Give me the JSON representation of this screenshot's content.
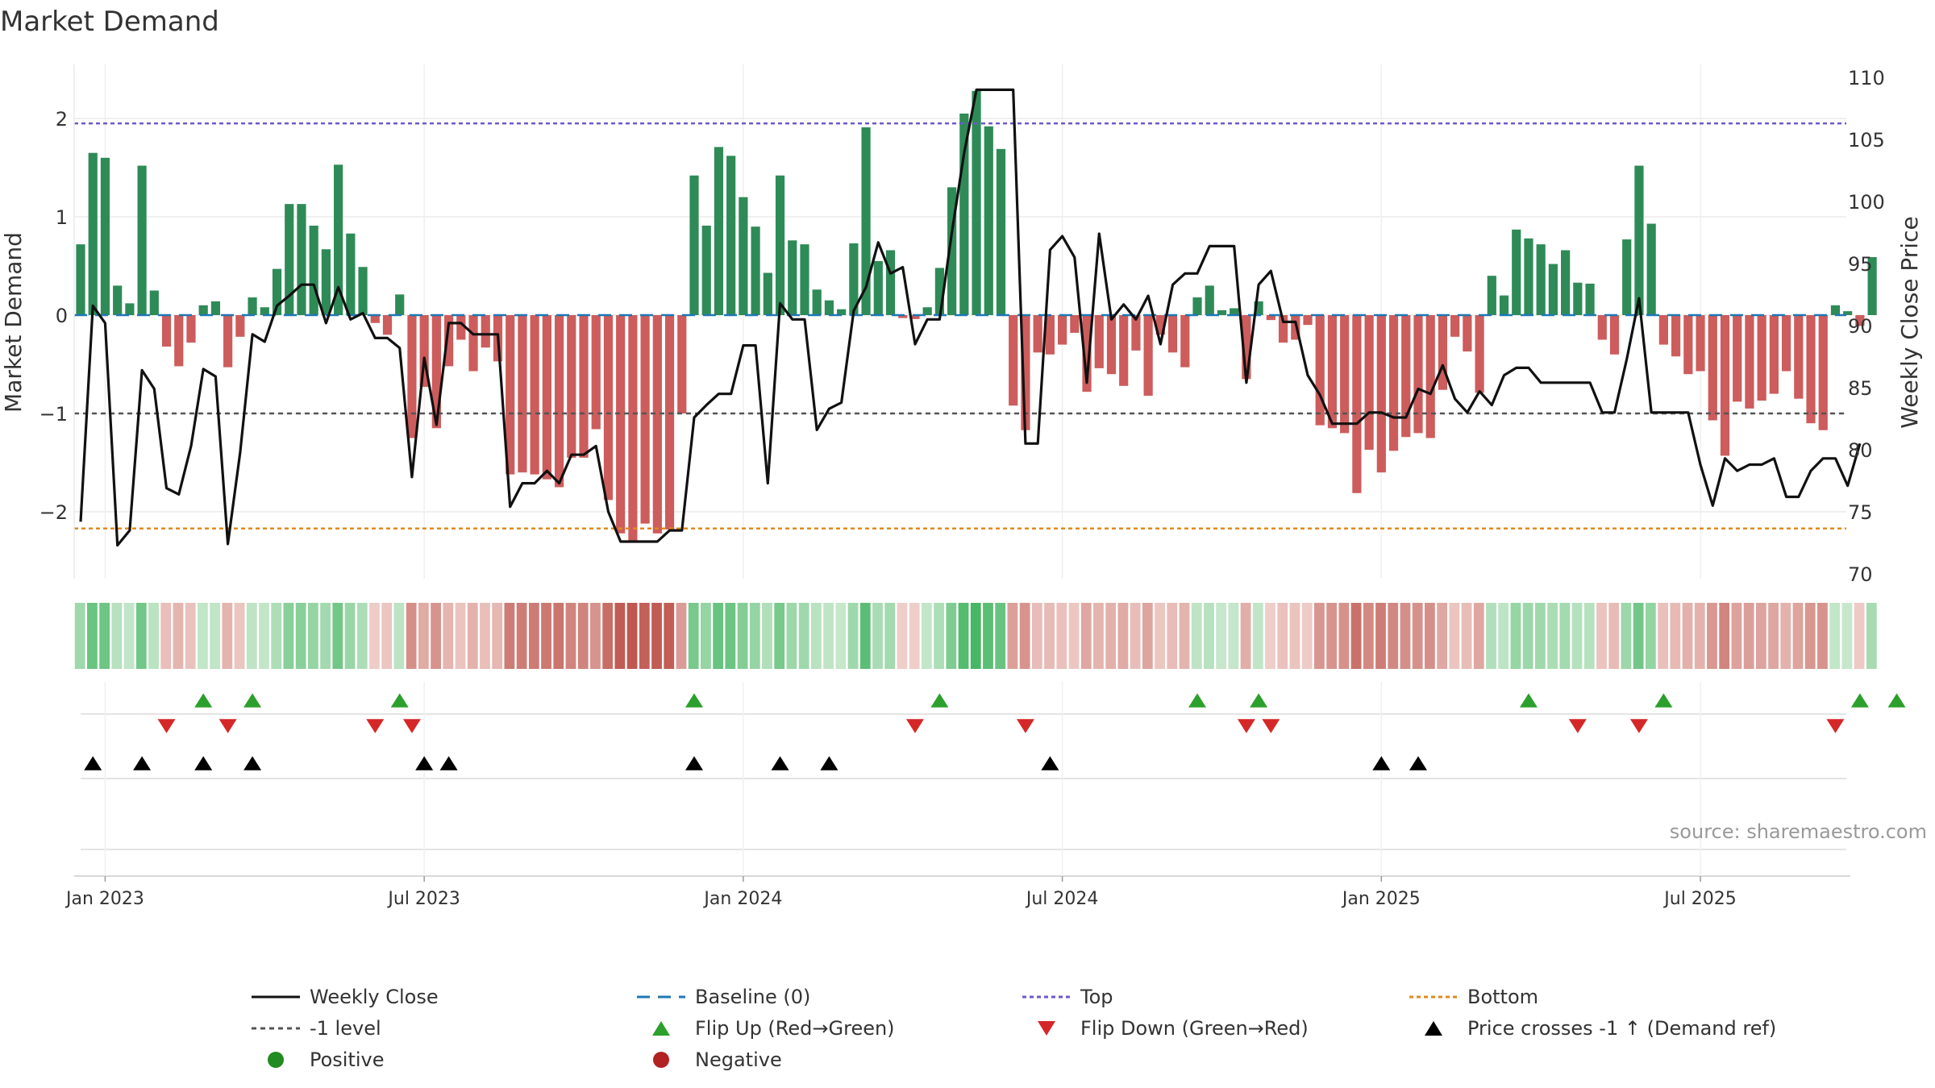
{
  "chart_data": {
    "type": "bar",
    "title": "Market Demand",
    "ylabel": "Market Demand",
    "y2label": "Weekly Close Price",
    "ylim": [
      -2.65,
      2.5
    ],
    "y2lim": [
      69.2,
      110.7
    ],
    "y_ticks": [
      "2",
      "1",
      "0",
      "−1",
      "−2"
    ],
    "y_tick_values": [
      2,
      1,
      0,
      -1,
      -2
    ],
    "y2_ticks": [
      "110",
      "105",
      "100",
      "95",
      "90",
      "85",
      "80",
      "75",
      "70"
    ],
    "y2_tick_values": [
      110,
      105,
      100,
      95,
      90,
      85,
      80,
      75,
      70
    ],
    "x_ticks": [
      "Jan 2023",
      "Jul 2023",
      "Jan 2024",
      "Jul 2024",
      "Jan 2025",
      "Jul 2025"
    ],
    "x_tick_weeks": [
      2,
      28,
      54,
      80,
      106,
      132
    ],
    "reference_lines": {
      "top": 1.95,
      "bottom": -2.17,
      "minus_one": -1,
      "baseline": 0
    },
    "demand": [
      0.72,
      1.65,
      1.6,
      0.3,
      0.12,
      1.52,
      0.25,
      -0.32,
      -0.52,
      -0.28,
      0.1,
      0.14,
      -0.53,
      -0.22,
      0.18,
      0.08,
      0.47,
      1.13,
      1.13,
      0.91,
      0.67,
      1.53,
      0.83,
      0.49,
      -0.08,
      -0.2,
      0.21,
      -1.25,
      -0.73,
      -1.15,
      -0.52,
      -0.25,
      -0.57,
      -0.33,
      -0.47,
      -1.62,
      -1.6,
      -1.62,
      -1.67,
      -1.75,
      -1.45,
      -1.45,
      -1.16,
      -1.88,
      -2.22,
      -2.3,
      -2.12,
      -2.22,
      -2.18,
      -1.0,
      1.42,
      0.91,
      1.71,
      1.62,
      1.2,
      0.9,
      0.43,
      1.42,
      0.76,
      0.72,
      0.26,
      0.15,
      0.06,
      0.73,
      1.91,
      0.55,
      0.66,
      -0.03,
      -0.04,
      0.08,
      0.48,
      1.3,
      2.05,
      2.28,
      1.92,
      1.69,
      -0.92,
      -1.17,
      -0.38,
      -0.4,
      -0.3,
      -0.18,
      -0.78,
      -0.54,
      -0.6,
      -0.72,
      -0.36,
      -0.82,
      -0.2,
      -0.38,
      -0.53,
      0.18,
      0.3,
      0.05,
      0.07,
      -0.65,
      0.14,
      -0.05,
      -0.28,
      -0.25,
      -0.1,
      -1.12,
      -1.15,
      -1.2,
      -1.81,
      -1.37,
      -1.6,
      -1.38,
      -1.24,
      -1.2,
      -1.25,
      -0.76,
      -0.22,
      -0.37,
      -0.79,
      0.4,
      0.2,
      0.87,
      0.78,
      0.72,
      0.52,
      0.66,
      0.33,
      0.32,
      -0.25,
      -0.4,
      0.77,
      1.52,
      0.93,
      -0.3,
      -0.42,
      -0.6,
      -0.57,
      -1.07,
      -1.43,
      -0.88,
      -0.95,
      -0.87,
      -0.8,
      -0.57,
      -0.85,
      -1.1,
      -1.17,
      0.1,
      0.04,
      -0.11,
      0.59
    ],
    "price": [
      74.2,
      91.6,
      90.2,
      72.3,
      73.5,
      86.4,
      84.9,
      76.9,
      76.4,
      80.3,
      86.5,
      85.9,
      72.4,
      79.8,
      89.3,
      88.7,
      91.6,
      92.4,
      93.3,
      93.3,
      90.2,
      93.1,
      90.5,
      91.0,
      89.0,
      89.0,
      88.2,
      77.8,
      87.4,
      82.0,
      90.2,
      90.2,
      89.3,
      89.3,
      89.3,
      75.4,
      77.3,
      77.3,
      78.3,
      77.3,
      79.6,
      79.6,
      80.3,
      75.0,
      72.6,
      72.6,
      72.6,
      72.6,
      73.5,
      73.5,
      82.6,
      83.6,
      84.5,
      84.5,
      88.4,
      88.4,
      77.3,
      91.8,
      90.5,
      90.5,
      81.6,
      83.3,
      83.8,
      91.2,
      93.1,
      96.7,
      94.2,
      94.7,
      88.5,
      90.5,
      90.5,
      97.5,
      103.9,
      109.0,
      109.0,
      109.0,
      109.0,
      80.5,
      80.5,
      96.1,
      97.2,
      95.5,
      85.4,
      97.4,
      90.5,
      91.7,
      90.5,
      92.4,
      88.5,
      93.3,
      94.2,
      94.2,
      96.4,
      96.4,
      96.4,
      85.4,
      93.3,
      94.4,
      90.3,
      90.3,
      86.0,
      84.4,
      82.1,
      82.1,
      82.1,
      83.0,
      83.0,
      82.6,
      82.6,
      84.9,
      84.5,
      86.8,
      84.1,
      83.0,
      84.7,
      83.6,
      86.0,
      86.6,
      86.6,
      85.4,
      85.4,
      85.4,
      85.4,
      85.4,
      83.0,
      83.0,
      87.3,
      92.2,
      83.0,
      83.0,
      83.0,
      83.0,
      78.8,
      75.5,
      79.3,
      78.3,
      78.8,
      78.8,
      79.3,
      76.2,
      76.2,
      78.3,
      79.3,
      79.3,
      77.1,
      80.5
    ],
    "markers": {
      "flip_up_weeks": [
        10,
        14,
        26,
        50,
        70,
        91,
        96,
        118,
        129,
        145,
        148
      ],
      "flip_down_weeks": [
        7,
        12,
        24,
        27,
        68,
        77,
        95,
        97,
        122,
        127,
        143
      ],
      "price_cross_weeks": [
        1,
        5,
        10,
        14,
        28,
        30,
        50,
        57,
        61,
        79,
        106,
        109
      ]
    },
    "source": "source: sharemaestro.com",
    "legend": [
      {
        "key": "weekly_close",
        "label": "Weekly Close"
      },
      {
        "key": "baseline",
        "label": "Baseline (0)"
      },
      {
        "key": "top",
        "label": "Top"
      },
      {
        "key": "bottom",
        "label": "Bottom"
      },
      {
        "key": "minus_one",
        "label": "-1 level"
      },
      {
        "key": "flip_up",
        "label": "Flip Up (Red→Green)"
      },
      {
        "key": "flip_down",
        "label": "Flip Down (Green→Red)"
      },
      {
        "key": "price_cross",
        "label": "Price crosses -1 ↑ (Demand ref)"
      },
      {
        "key": "positive",
        "label": "Positive"
      },
      {
        "key": "negative",
        "label": "Negative"
      }
    ]
  },
  "colors": {
    "positive": "#2e8b57",
    "negative": "#cd5c5c",
    "price_line": "#111111",
    "baseline": "#1f77b4",
    "top": "#6a5acd",
    "bottom": "#e08a1e",
    "minus_one": "#555555",
    "flip_up": "#2ca02c",
    "flip_down": "#d62728",
    "cross": "#000000",
    "positive_dot": "#228b22",
    "negative_dot": "#b22222"
  }
}
